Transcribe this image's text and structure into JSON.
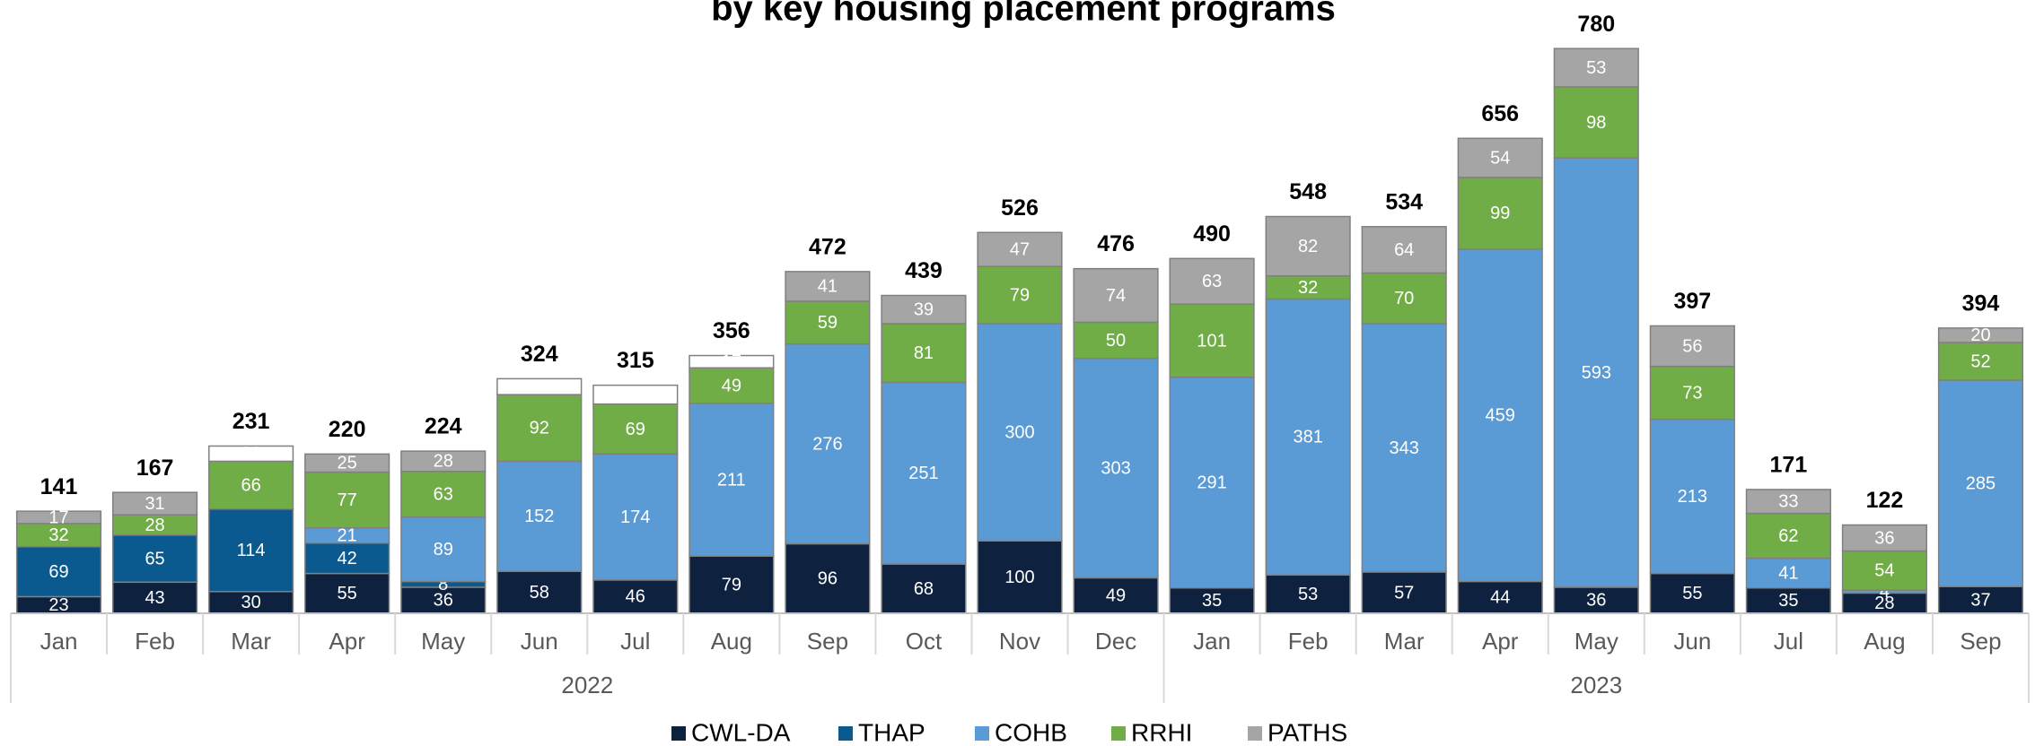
{
  "chart_data": {
    "type": "stacked_bar",
    "title": "by key housing placement programs",
    "categories": [
      "Jan",
      "Feb",
      "Mar",
      "Apr",
      "May",
      "Jun",
      "Jul",
      "Aug",
      "Sep",
      "Oct",
      "Nov",
      "Dec",
      "Jan",
      "Feb",
      "Mar",
      "Apr",
      "May",
      "Jun",
      "Jul",
      "Aug",
      "Sep"
    ],
    "groups": [
      {
        "label": "2022",
        "count": 12
      },
      {
        "label": "2023",
        "count": 9
      }
    ],
    "series": [
      {
        "name": "CWL-DA",
        "color": "#0e2240",
        "values": [
          23,
          43,
          30,
          55,
          36,
          58,
          46,
          79,
          96,
          68,
          100,
          49,
          35,
          53,
          57,
          44,
          36,
          55,
          35,
          28,
          37
        ]
      },
      {
        "name": "THAP",
        "color": "#0b5a8f",
        "values": [
          69,
          65,
          114,
          42,
          8,
          null,
          null,
          null,
          null,
          null,
          null,
          null,
          null,
          null,
          null,
          null,
          null,
          null,
          null,
          null,
          null
        ]
      },
      {
        "name": "COHB",
        "color": "#5b9bd5",
        "values": [
          null,
          null,
          null,
          21,
          89,
          152,
          174,
          211,
          276,
          251,
          300,
          303,
          291,
          381,
          343,
          459,
          593,
          213,
          41,
          4,
          285
        ]
      },
      {
        "name": "RRHI",
        "color": "#70ad47",
        "values": [
          32,
          28,
          66,
          77,
          63,
          92,
          69,
          49,
          59,
          81,
          79,
          50,
          101,
          32,
          70,
          99,
          98,
          73,
          62,
          54,
          52
        ]
      },
      {
        "name": "PATHS",
        "color": "#a5a5a5",
        "values": [
          17,
          31,
          null,
          25,
          28,
          null,
          null,
          null,
          41,
          39,
          47,
          74,
          63,
          82,
          64,
          54,
          53,
          56,
          33,
          36,
          20
        ]
      },
      {
        "color": "#ffffff",
        "values": [
          null,
          null,
          21,
          null,
          null,
          22,
          26,
          17,
          null,
          null,
          null,
          null,
          null,
          null,
          null,
          null,
          null,
          null,
          null,
          null,
          null
        ]
      }
    ],
    "totals": [
      141,
      167,
      231,
      220,
      224,
      324,
      315,
      356,
      472,
      439,
      526,
      476,
      490,
      548,
      534,
      656,
      780,
      397,
      171,
      122,
      394
    ],
    "ylim": [
      0,
      800
    ]
  }
}
